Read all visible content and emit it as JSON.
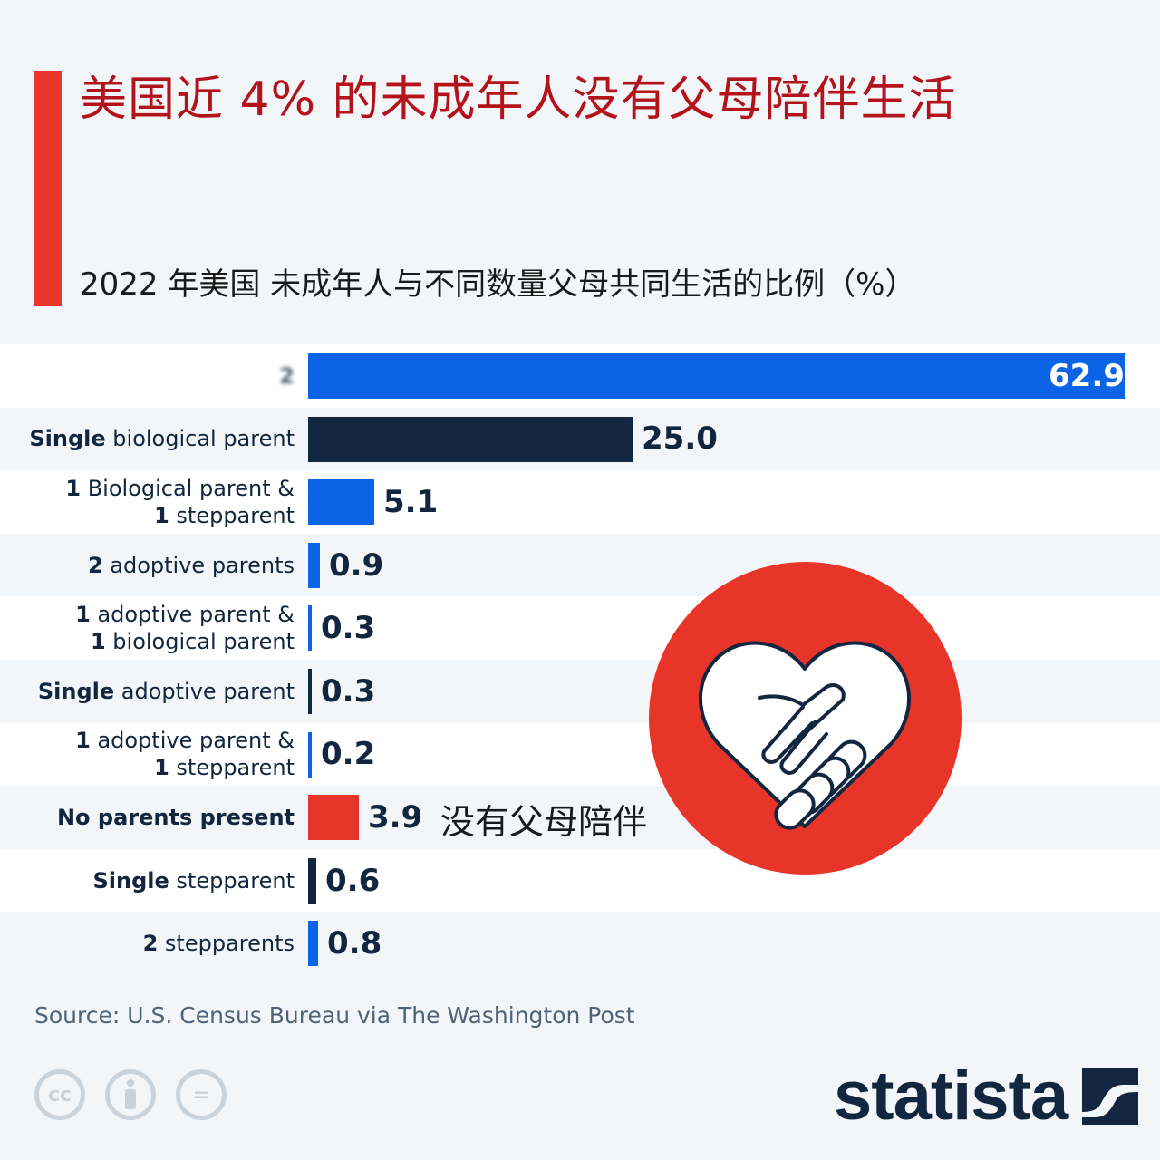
{
  "header": {
    "title": "美国近 4% 的未成年人没有父母陪伴生活",
    "subtitle": "2022 年美国 未成年人与不同数量父母共同生活的比例（%）"
  },
  "colors": {
    "accent_red": "#e8352a",
    "title_red": "#b3141c",
    "bar_blue": "#0b63e5",
    "bar_navy": "#12263f",
    "background": "#f3f6f9"
  },
  "chart_data": {
    "type": "bar",
    "orientation": "horizontal",
    "title": "美国近 4% 的未成年人没有父母陪伴生活",
    "subtitle": "2022 年美国 未成年人与不同数量父母共同生活的比例（%）",
    "xlabel": "",
    "ylabel": "",
    "unit": "%",
    "grid": false,
    "legend": null,
    "categories": [
      "2 (label obscured)",
      "Single biological parent",
      "1 Biological parent & 1 stepparent",
      "2 adoptive parents",
      "1 adoptive parent & 1 biological parent",
      "Single adoptive parent",
      "1 adoptive parent & 1 stepparent",
      "No parents present",
      "Single stepparent",
      "2 stepparents"
    ],
    "values": [
      62.9,
      25.0,
      5.1,
      0.9,
      0.3,
      0.3,
      0.2,
      3.9,
      0.6,
      0.8
    ],
    "bar_colors": [
      "#0b63e5",
      "#12263f",
      "#0b63e5",
      "#0b63e5",
      "#0b63e5",
      "#12263f",
      "#0b63e5",
      "#e8352a",
      "#12263f",
      "#0b63e5"
    ],
    "annotations": [
      {
        "category": "No parents present",
        "text": "没有父母陪伴"
      }
    ],
    "xlim": [
      0,
      62.9
    ]
  },
  "rows": [
    {
      "bold": "2",
      "rest": "",
      "line2_bold": "",
      "line2_rest": "",
      "value": "62.9",
      "color": "#0b63e5",
      "pct": 62.9,
      "blurred": true
    },
    {
      "bold": "Single",
      "rest": " biological parent",
      "line2_bold": "",
      "line2_rest": "",
      "value": "25.0",
      "color": "#12263f",
      "pct": 25.0
    },
    {
      "bold": "1",
      "rest": " Biological parent &",
      "line2_bold": "1",
      "line2_rest": " stepparent",
      "value": "5.1",
      "color": "#0b63e5",
      "pct": 5.1
    },
    {
      "bold": "2",
      "rest": " adoptive parents",
      "line2_bold": "",
      "line2_rest": "",
      "value": "0.9",
      "color": "#0b63e5",
      "pct": 0.9
    },
    {
      "bold": "1",
      "rest": " adoptive parent &",
      "line2_bold": "1",
      "line2_rest": " biological parent",
      "value": "0.3",
      "color": "#0b63e5",
      "pct": 0.3
    },
    {
      "bold": "Single",
      "rest": " adoptive parent",
      "line2_bold": "",
      "line2_rest": "",
      "value": "0.3",
      "color": "#12263f",
      "pct": 0.3
    },
    {
      "bold": "1",
      "rest": " adoptive parent &",
      "line2_bold": "1",
      "line2_rest": " stepparent",
      "value": "0.2",
      "color": "#0b63e5",
      "pct": 0.2
    },
    {
      "bold": "No parents present",
      "rest": "",
      "line2_bold": "",
      "line2_rest": "",
      "value": "3.9",
      "color": "#e8352a",
      "pct": 3.9
    },
    {
      "bold": "Single",
      "rest": " stepparent",
      "line2_bold": "",
      "line2_rest": "",
      "value": "0.6",
      "color": "#12263f",
      "pct": 0.6
    },
    {
      "bold": "2",
      "rest": " stepparents",
      "line2_bold": "",
      "line2_rest": "",
      "value": "0.8",
      "color": "#0b63e5",
      "pct": 0.8
    }
  ],
  "annotation": {
    "text": "没有父母陪伴"
  },
  "badge": {
    "icon": "heart-handshake-icon"
  },
  "footer": {
    "source": "Source: U.S. Census Bureau via The Washington Post",
    "license_icons": [
      "cc-icon",
      "attribution-icon",
      "no-derivatives-icon"
    ],
    "cc_text": "cc",
    "nd_text": "=",
    "logo": "statista"
  }
}
